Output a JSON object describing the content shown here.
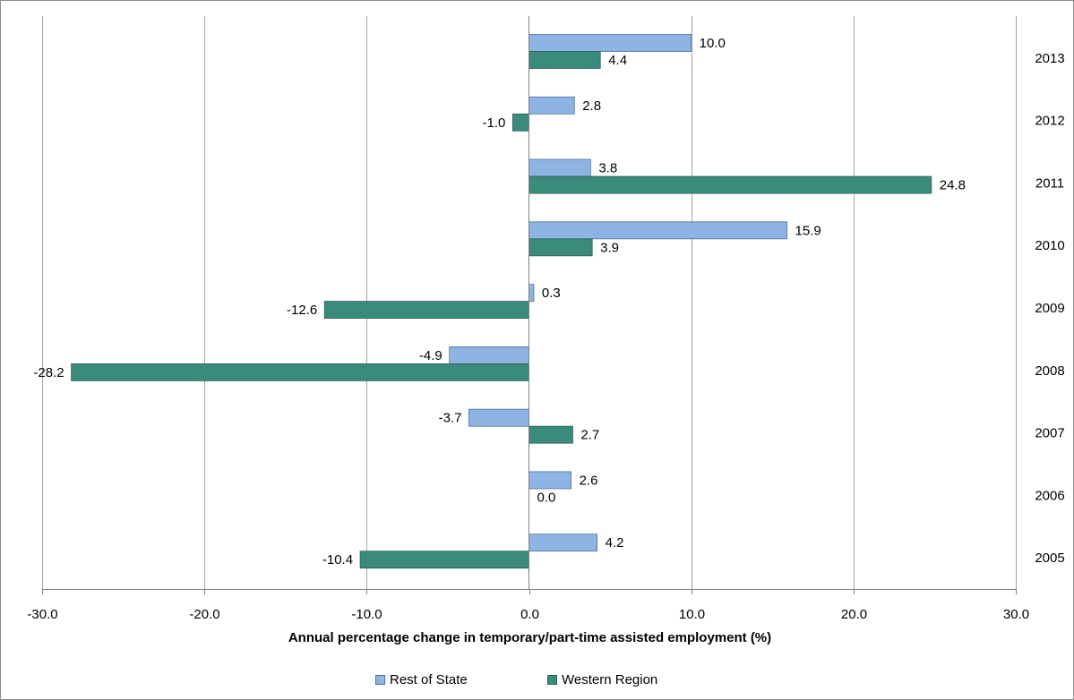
{
  "chart_data": {
    "type": "bar",
    "orientation": "horizontal",
    "categories": [
      "2013",
      "2012",
      "2011",
      "2010",
      "2009",
      "2008",
      "2007",
      "2006",
      "2005"
    ],
    "series": [
      {
        "name": "Rest of State",
        "color": "#8eb4e3",
        "values": [
          10.0,
          2.8,
          3.8,
          15.9,
          0.3,
          -4.9,
          -3.7,
          2.6,
          4.2
        ],
        "labels": [
          "10.0",
          "2.8",
          "3.8",
          "15.9",
          "0.3",
          "-4.9",
          "-3.7",
          "2.6",
          "4.2"
        ]
      },
      {
        "name": "Western Region",
        "color": "#3a8b7c",
        "values": [
          4.4,
          -1.0,
          24.8,
          3.9,
          -12.6,
          -28.2,
          2.7,
          0.0,
          -10.4
        ],
        "labels": [
          "4.4",
          "-1.0",
          "24.8",
          "3.9",
          "-12.6",
          "-28.2",
          "2.7",
          "0.0",
          "-10.4"
        ]
      }
    ],
    "xlabel": "Annual percentage change in temporary/part-time assisted employment (%)",
    "xlim": [
      -30,
      30
    ],
    "xticks": [
      -30,
      -20,
      -10,
      0,
      10,
      20,
      30
    ],
    "xtick_labels": [
      "-30.0",
      "-20.0",
      "-10.0",
      "0.0",
      "10.0",
      "20.0",
      "30.0"
    ],
    "category_axis_side": "right",
    "grid": "vertical",
    "legend_position": "bottom"
  }
}
